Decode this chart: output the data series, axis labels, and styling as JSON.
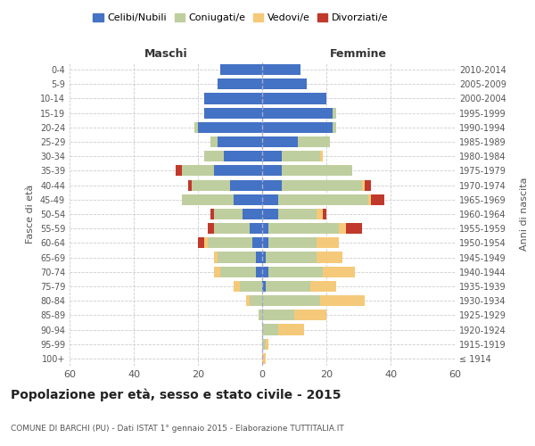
{
  "age_groups": [
    "100+",
    "95-99",
    "90-94",
    "85-89",
    "80-84",
    "75-79",
    "70-74",
    "65-69",
    "60-64",
    "55-59",
    "50-54",
    "45-49",
    "40-44",
    "35-39",
    "30-34",
    "25-29",
    "20-24",
    "15-19",
    "10-14",
    "5-9",
    "0-4"
  ],
  "birth_years": [
    "≤ 1914",
    "1915-1919",
    "1920-1924",
    "1925-1929",
    "1930-1934",
    "1935-1939",
    "1940-1944",
    "1945-1949",
    "1950-1954",
    "1955-1959",
    "1960-1964",
    "1965-1969",
    "1970-1974",
    "1975-1979",
    "1980-1984",
    "1985-1989",
    "1990-1994",
    "1995-1999",
    "2000-2004",
    "2005-2009",
    "2010-2014"
  ],
  "male": {
    "celibi": [
      0,
      0,
      0,
      0,
      0,
      0,
      2,
      2,
      3,
      4,
      6,
      9,
      10,
      15,
      12,
      14,
      20,
      18,
      18,
      14,
      13
    ],
    "coniugati": [
      0,
      0,
      0,
      1,
      4,
      7,
      11,
      12,
      14,
      11,
      9,
      16,
      12,
      10,
      6,
      2,
      1,
      0,
      0,
      0,
      0
    ],
    "vedovi": [
      0,
      0,
      0,
      0,
      1,
      2,
      2,
      1,
      1,
      0,
      0,
      0,
      0,
      0,
      0,
      0,
      0,
      0,
      0,
      0,
      0
    ],
    "divorziati": [
      0,
      0,
      0,
      0,
      0,
      0,
      0,
      0,
      2,
      2,
      1,
      0,
      1,
      2,
      0,
      0,
      0,
      0,
      0,
      0,
      0
    ]
  },
  "female": {
    "nubili": [
      0,
      0,
      0,
      0,
      0,
      1,
      2,
      1,
      2,
      2,
      5,
      5,
      6,
      6,
      6,
      11,
      22,
      22,
      20,
      14,
      12
    ],
    "coniugate": [
      0,
      1,
      5,
      10,
      18,
      14,
      17,
      16,
      15,
      22,
      12,
      28,
      25,
      22,
      12,
      10,
      1,
      1,
      0,
      0,
      0
    ],
    "vedove": [
      1,
      1,
      8,
      10,
      14,
      8,
      10,
      8,
      7,
      2,
      2,
      1,
      1,
      0,
      1,
      0,
      0,
      0,
      0,
      0,
      0
    ],
    "divorziate": [
      0,
      0,
      0,
      0,
      0,
      0,
      0,
      0,
      0,
      5,
      1,
      4,
      2,
      0,
      0,
      0,
      0,
      0,
      0,
      0,
      0
    ]
  },
  "colors": {
    "celibi": "#4472C4",
    "coniugati": "#BFCE9E",
    "vedovi": "#F5C97A",
    "divorziati": "#C0392B"
  },
  "title": "Popolazione per età, sesso e stato civile - 2015",
  "subtitle": "COMUNE DI BARCHI (PU) - Dati ISTAT 1° gennaio 2015 - Elaborazione TUTTITALIA.IT",
  "xlabel_left": "Maschi",
  "xlabel_right": "Femmine",
  "ylabel_left": "Fasce di età",
  "ylabel_right": "Anni di nascita",
  "xlim": 60,
  "bg_color": "#ffffff",
  "grid_color": "#cccccc",
  "legend_labels": [
    "Celibi/Nubili",
    "Coniugati/e",
    "Vedovi/e",
    "Divorziati/e"
  ]
}
